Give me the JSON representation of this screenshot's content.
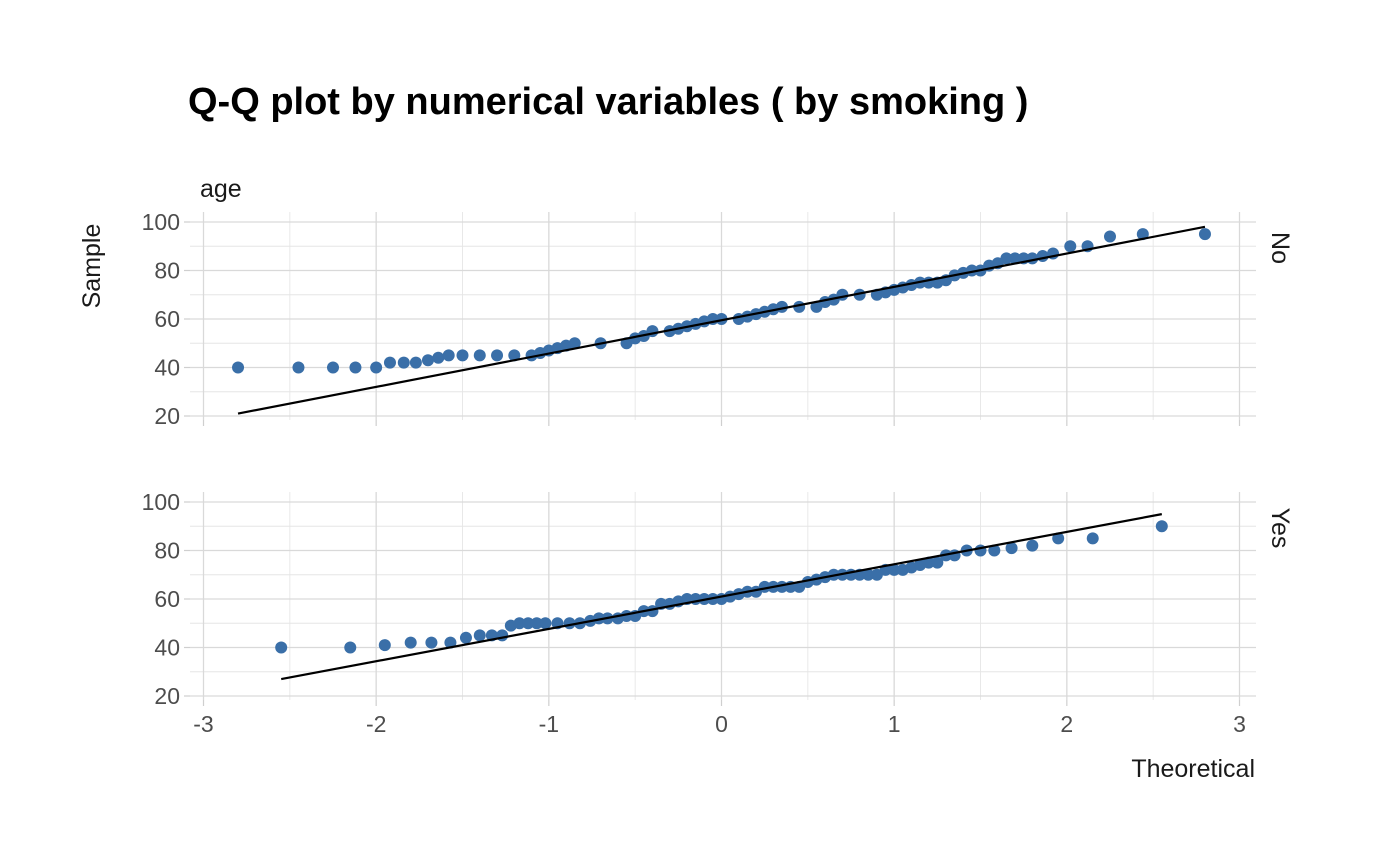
{
  "chart_data": {
    "type": "scatter",
    "title": "Q-Q plot by numerical variables ( by smoking )",
    "xlabel": "Theoretical",
    "ylabel": "Sample",
    "variable": "age",
    "point_color": "#3A6FA8",
    "line_color": "#000000",
    "grid": true,
    "xlim": [
      -3,
      3
    ],
    "ylim": [
      20,
      100
    ],
    "x_ticks": [
      "-3",
      "-2",
      "-1",
      "0",
      "1",
      "2",
      "3"
    ],
    "y_ticks": [
      "20",
      "40",
      "60",
      "80",
      "100"
    ],
    "panels": [
      {
        "facet": "No",
        "reference_line": {
          "x": [
            -2.8,
            2.8
          ],
          "y": [
            21,
            98
          ]
        },
        "points": [
          [
            -2.8,
            40
          ],
          [
            -2.45,
            40
          ],
          [
            -2.25,
            40
          ],
          [
            -2.12,
            40
          ],
          [
            -2.0,
            40
          ],
          [
            -1.92,
            42
          ],
          [
            -1.84,
            42
          ],
          [
            -1.77,
            42
          ],
          [
            -1.7,
            43
          ],
          [
            -1.64,
            44
          ],
          [
            -1.58,
            45
          ],
          [
            -1.5,
            45
          ],
          [
            -1.4,
            45
          ],
          [
            -1.3,
            45
          ],
          [
            -1.2,
            45
          ],
          [
            -1.1,
            45
          ],
          [
            -1.05,
            46
          ],
          [
            -1.0,
            47
          ],
          [
            -0.95,
            48
          ],
          [
            -0.9,
            49
          ],
          [
            -0.85,
            50
          ],
          [
            -0.7,
            50
          ],
          [
            -0.55,
            50
          ],
          [
            -0.5,
            52
          ],
          [
            -0.45,
            53
          ],
          [
            -0.4,
            55
          ],
          [
            -0.3,
            55
          ],
          [
            -0.25,
            56
          ],
          [
            -0.2,
            57
          ],
          [
            -0.15,
            58
          ],
          [
            -0.1,
            59
          ],
          [
            -0.05,
            60
          ],
          [
            0.0,
            60
          ],
          [
            0.1,
            60
          ],
          [
            0.15,
            61
          ],
          [
            0.2,
            62
          ],
          [
            0.25,
            63
          ],
          [
            0.3,
            64
          ],
          [
            0.35,
            65
          ],
          [
            0.45,
            65
          ],
          [
            0.55,
            65
          ],
          [
            0.6,
            67
          ],
          [
            0.65,
            68
          ],
          [
            0.7,
            70
          ],
          [
            0.8,
            70
          ],
          [
            0.9,
            70
          ],
          [
            0.95,
            71
          ],
          [
            1.0,
            72
          ],
          [
            1.05,
            73
          ],
          [
            1.1,
            74
          ],
          [
            1.15,
            75
          ],
          [
            1.2,
            75
          ],
          [
            1.25,
            75
          ],
          [
            1.3,
            76
          ],
          [
            1.35,
            78
          ],
          [
            1.4,
            79
          ],
          [
            1.45,
            80
          ],
          [
            1.5,
            80
          ],
          [
            1.55,
            82
          ],
          [
            1.6,
            83
          ],
          [
            1.65,
            85
          ],
          [
            1.7,
            85
          ],
          [
            1.75,
            85
          ],
          [
            1.8,
            85
          ],
          [
            1.86,
            86
          ],
          [
            1.92,
            87
          ],
          [
            2.02,
            90
          ],
          [
            2.12,
            90
          ],
          [
            2.25,
            94
          ],
          [
            2.44,
            95
          ],
          [
            2.8,
            95
          ]
        ]
      },
      {
        "facet": "Yes",
        "reference_line": {
          "x": [
            -2.55,
            2.55
          ],
          "y": [
            27,
            95
          ]
        },
        "points": [
          [
            -2.55,
            40
          ],
          [
            -2.15,
            40
          ],
          [
            -1.95,
            41
          ],
          [
            -1.8,
            42
          ],
          [
            -1.68,
            42
          ],
          [
            -1.57,
            42
          ],
          [
            -1.48,
            44
          ],
          [
            -1.4,
            45
          ],
          [
            -1.33,
            45
          ],
          [
            -1.27,
            45
          ],
          [
            -1.22,
            49
          ],
          [
            -1.17,
            50
          ],
          [
            -1.12,
            50
          ],
          [
            -1.07,
            50
          ],
          [
            -1.02,
            50
          ],
          [
            -0.95,
            50
          ],
          [
            -0.88,
            50
          ],
          [
            -0.82,
            50
          ],
          [
            -0.76,
            51
          ],
          [
            -0.71,
            52
          ],
          [
            -0.66,
            52
          ],
          [
            -0.6,
            52
          ],
          [
            -0.55,
            53
          ],
          [
            -0.5,
            53
          ],
          [
            -0.45,
            55
          ],
          [
            -0.4,
            55
          ],
          [
            -0.35,
            58
          ],
          [
            -0.3,
            58
          ],
          [
            -0.25,
            59
          ],
          [
            -0.2,
            60
          ],
          [
            -0.15,
            60
          ],
          [
            -0.1,
            60
          ],
          [
            -0.05,
            60
          ],
          [
            0.0,
            60
          ],
          [
            0.05,
            61
          ],
          [
            0.1,
            62
          ],
          [
            0.15,
            63
          ],
          [
            0.2,
            63
          ],
          [
            0.25,
            65
          ],
          [
            0.3,
            65
          ],
          [
            0.35,
            65
          ],
          [
            0.4,
            65
          ],
          [
            0.45,
            65
          ],
          [
            0.5,
            67
          ],
          [
            0.55,
            68
          ],
          [
            0.6,
            69
          ],
          [
            0.65,
            70
          ],
          [
            0.7,
            70
          ],
          [
            0.75,
            70
          ],
          [
            0.8,
            70
          ],
          [
            0.85,
            70
          ],
          [
            0.9,
            70
          ],
          [
            0.95,
            72
          ],
          [
            1.0,
            72
          ],
          [
            1.05,
            72
          ],
          [
            1.1,
            73
          ],
          [
            1.15,
            74
          ],
          [
            1.2,
            75
          ],
          [
            1.25,
            75
          ],
          [
            1.3,
            78
          ],
          [
            1.35,
            78
          ],
          [
            1.42,
            80
          ],
          [
            1.5,
            80
          ],
          [
            1.58,
            80
          ],
          [
            1.68,
            81
          ],
          [
            1.8,
            82
          ],
          [
            1.95,
            85
          ],
          [
            2.15,
            85
          ],
          [
            2.55,
            90
          ]
        ]
      }
    ]
  }
}
